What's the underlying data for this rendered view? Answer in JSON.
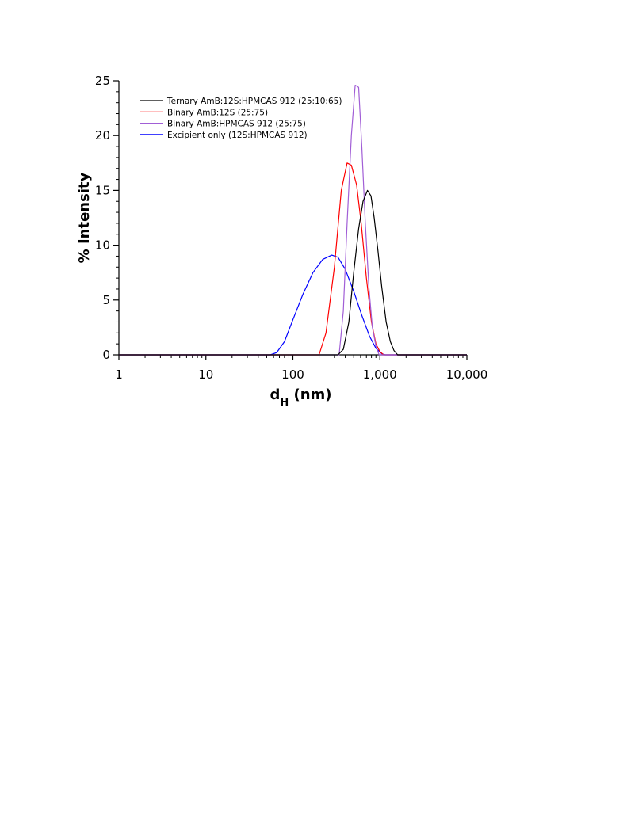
{
  "chart_data": {
    "type": "line",
    "title": "",
    "xlabel": "d",
    "xlabel_sub": "H",
    "xlabel_unit": " (nm)",
    "ylabel": "% Intensity",
    "xscale": "log",
    "xlim": [
      1,
      10000
    ],
    "ylim": [
      0,
      25
    ],
    "x_ticks": [
      1,
      10,
      100,
      1000,
      10000
    ],
    "x_tick_labels": [
      "1",
      "10",
      "100",
      "1,000",
      "10,000"
    ],
    "y_ticks": [
      0,
      5,
      10,
      15,
      20,
      25
    ],
    "y_tick_labels": [
      "0",
      "5",
      "10",
      "15",
      "20",
      "25"
    ],
    "grid": false,
    "legend": "top-left",
    "series": [
      {
        "name": "Ternary AmB:12S:HPMCAS 912 (25:10:65)",
        "color": "#000000",
        "points": [
          [
            1,
            0
          ],
          [
            330,
            0
          ],
          [
            380,
            0.5
          ],
          [
            440,
            3.0
          ],
          [
            500,
            7.5
          ],
          [
            570,
            11.5
          ],
          [
            640,
            14.0
          ],
          [
            720,
            15.0
          ],
          [
            790,
            14.5
          ],
          [
            860,
            12.5
          ],
          [
            950,
            9.5
          ],
          [
            1050,
            6.2
          ],
          [
            1180,
            3.0
          ],
          [
            1320,
            1.2
          ],
          [
            1450,
            0.4
          ],
          [
            1600,
            0
          ],
          [
            10000,
            0
          ]
        ]
      },
      {
        "name": "Binary AmB:12S (25:75)",
        "color": "#ff0000",
        "points": [
          [
            1,
            0
          ],
          [
            200,
            0
          ],
          [
            240,
            2.0
          ],
          [
            300,
            8.0
          ],
          [
            360,
            15.0
          ],
          [
            420,
            17.5
          ],
          [
            470,
            17.3
          ],
          [
            540,
            15.5
          ],
          [
            610,
            12.0
          ],
          [
            700,
            7.0
          ],
          [
            800,
            3.0
          ],
          [
            900,
            1.0
          ],
          [
            1000,
            0.3
          ],
          [
            1100,
            0
          ],
          [
            10000,
            0
          ]
        ]
      },
      {
        "name": "Binary AmB:HPMCAS 912 (25:75)",
        "color": "#a15ed6",
        "points": [
          [
            1,
            0
          ],
          [
            340,
            0
          ],
          [
            380,
            4.0
          ],
          [
            420,
            12.0
          ],
          [
            470,
            20.0
          ],
          [
            520,
            24.6
          ],
          [
            570,
            24.4
          ],
          [
            620,
            19.0
          ],
          [
            680,
            12.0
          ],
          [
            750,
            6.0
          ],
          [
            820,
            2.5
          ],
          [
            900,
            0.8
          ],
          [
            980,
            0
          ],
          [
            10000,
            0
          ]
        ]
      },
      {
        "name": "Excipient only (12S:HPMCAS 912)",
        "color": "#0000ff",
        "points": [
          [
            1,
            0
          ],
          [
            55,
            0
          ],
          [
            65,
            0.2
          ],
          [
            80,
            1.2
          ],
          [
            100,
            3.2
          ],
          [
            130,
            5.5
          ],
          [
            170,
            7.5
          ],
          [
            220,
            8.7
          ],
          [
            280,
            9.1
          ],
          [
            330,
            8.9
          ],
          [
            400,
            7.8
          ],
          [
            500,
            5.8
          ],
          [
            620,
            3.6
          ],
          [
            760,
            1.7
          ],
          [
            900,
            0.6
          ],
          [
            1050,
            0.1
          ],
          [
            1150,
            0
          ],
          [
            10000,
            0
          ]
        ]
      }
    ]
  }
}
